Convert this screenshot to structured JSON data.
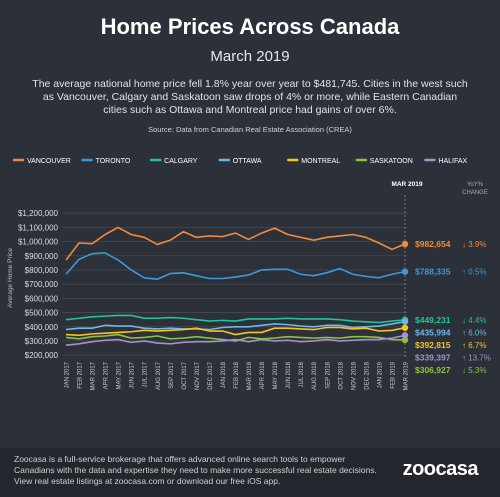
{
  "title": "Home Prices Across Canada",
  "subtitle": "March 2019",
  "description": "The average national home price fell 1.8% year over year to $481,745. Cities in the west such as Vancouver, Calgary and Saskatoon saw drops of 4% or more, while Eastern Canadian cities such as Ottawa and Montreal price had gains of over 6%.",
  "source": "Source: Data from Canadian Real Estate Association (CREA)",
  "footer": {
    "lines": [
      "Zoocasa is a full-service brokerage that offers advanced online search tools to empower",
      "Canadians with the data and expertise they need to make more successful real estate decisions.",
      "View real estate listings at zoocasa.com or download our free iOS app."
    ],
    "logo": "zoocasa"
  },
  "chart_data": {
    "type": "line",
    "y_label": "Average Home Price",
    "end_header": "MAR 2019",
    "change_header": "YoY% CHANGE",
    "grid": true,
    "categories": [
      "JAN 2017",
      "FEB 2017",
      "MAR 2017",
      "APR 2017",
      "MAY 2017",
      "JUN 2017",
      "JUL 2017",
      "AUG 2017",
      "SEP 2017",
      "OCT 2017",
      "NOV 2017",
      "DEC 2017",
      "JAN 2018",
      "FEB 2018",
      "MAR 2018",
      "APR 2018",
      "MAY 2018",
      "JUN 2018",
      "JUL 2018",
      "AUG 2018",
      "SEP 2018",
      "OCT 2018",
      "NOV 2018",
      "DEC 2018",
      "JAN 2019",
      "FEB 2019",
      "MAR 2019"
    ],
    "ylim": [
      180000,
      1300000
    ],
    "yticks": [
      {
        "value": 200000,
        "label": "$200,000"
      },
      {
        "value": 300000,
        "label": "$300,000"
      },
      {
        "value": 400000,
        "label": "$400,000"
      },
      {
        "value": 500000,
        "label": "$500,000"
      },
      {
        "value": 600000,
        "label": "$600,000"
      },
      {
        "value": 700000,
        "label": "$700,000"
      },
      {
        "value": 800000,
        "label": "$800,000"
      },
      {
        "value": 900000,
        "label": "$900,000"
      },
      {
        "value": 1000000,
        "label": "$1,000,000"
      },
      {
        "value": 1100000,
        "label": "$1,100,000"
      },
      {
        "value": 1200000,
        "label": "$1,200,000"
      }
    ],
    "series": [
      {
        "name": "VANCOUVER",
        "color": "#f08a3c",
        "change": "↓ 3.9%",
        "values": [
          870000,
          990000,
          985000,
          1050000,
          1100000,
          1050000,
          1030000,
          980000,
          1010000,
          1070000,
          1030000,
          1040000,
          1035000,
          1060000,
          1015000,
          1060000,
          1095000,
          1050000,
          1030000,
          1010000,
          1030000,
          1040000,
          1050000,
          1030000,
          990000,
          945000,
          982654
        ],
        "value_labels": [
          null,
          null,
          null,
          null,
          null,
          null,
          null,
          null,
          null,
          null,
          null,
          null,
          null,
          null,
          null,
          null,
          null,
          null,
          null,
          null,
          null,
          null,
          null,
          null,
          null,
          null,
          "$982,654"
        ]
      },
      {
        "name": "TORONTO",
        "color": "#3a9ad9",
        "change": "↑ 0.5%",
        "values": [
          770000,
          875000,
          915000,
          920000,
          870000,
          800000,
          745000,
          735000,
          775000,
          780000,
          760000,
          740000,
          740000,
          750000,
          765000,
          800000,
          805000,
          805000,
          770000,
          760000,
          780000,
          810000,
          770000,
          755000,
          745000,
          770000,
          788335
        ],
        "value_labels": [
          null,
          null,
          null,
          null,
          null,
          null,
          null,
          null,
          null,
          null,
          null,
          null,
          null,
          null,
          null,
          null,
          null,
          null,
          null,
          null,
          null,
          null,
          null,
          null,
          null,
          null,
          "$788,335"
        ]
      },
      {
        "name": "CALGARY",
        "color": "#1fc3a0",
        "change": "↓ 4.4%",
        "values": [
          450000,
          460000,
          470000,
          475000,
          480000,
          480000,
          460000,
          460000,
          465000,
          460000,
          450000,
          440000,
          445000,
          440000,
          455000,
          455000,
          455000,
          460000,
          455000,
          455000,
          455000,
          450000,
          440000,
          435000,
          430000,
          440000,
          449231
        ],
        "value_labels": [
          null,
          null,
          null,
          null,
          null,
          null,
          null,
          null,
          null,
          null,
          null,
          null,
          null,
          null,
          null,
          null,
          null,
          null,
          null,
          null,
          null,
          null,
          null,
          null,
          null,
          null,
          "$449,231"
        ]
      },
      {
        "name": "OTTAWA",
        "color": "#6cb7e8",
        "change": "↑ 6.0%",
        "values": [
          380000,
          390000,
          390000,
          410000,
          405000,
          405000,
          390000,
          385000,
          390000,
          385000,
          385000,
          380000,
          395000,
          400000,
          400000,
          410000,
          420000,
          415000,
          405000,
          400000,
          410000,
          410000,
          395000,
          400000,
          405000,
          420000,
          435994
        ],
        "value_labels": [
          null,
          null,
          null,
          null,
          null,
          null,
          null,
          null,
          null,
          null,
          null,
          null,
          null,
          null,
          null,
          null,
          null,
          null,
          null,
          null,
          null,
          null,
          null,
          null,
          null,
          null,
          "$435,994"
        ]
      },
      {
        "name": "MONTREAL",
        "color": "#f5c518",
        "change": "↑ 6.7%",
        "values": [
          345000,
          340000,
          350000,
          355000,
          360000,
          365000,
          375000,
          370000,
          375000,
          380000,
          390000,
          370000,
          370000,
          345000,
          360000,
          360000,
          390000,
          390000,
          385000,
          380000,
          395000,
          395000,
          385000,
          390000,
          370000,
          375000,
          392815
        ],
        "value_labels": [
          null,
          null,
          null,
          null,
          null,
          null,
          null,
          null,
          null,
          null,
          null,
          null,
          null,
          null,
          null,
          null,
          null,
          null,
          null,
          null,
          null,
          null,
          null,
          null,
          null,
          null,
          "$392,815"
        ]
      },
      {
        "name": "SASKATOON",
        "color": "#8ac43f",
        "change": "↓ 5.3%",
        "values": [
          325000,
          315000,
          330000,
          335000,
          345000,
          320000,
          325000,
          335000,
          315000,
          320000,
          330000,
          320000,
          310000,
          300000,
          325000,
          315000,
          320000,
          330000,
          325000,
          320000,
          325000,
          320000,
          330000,
          330000,
          325000,
          310000,
          306927
        ],
        "value_labels": [
          null,
          null,
          null,
          null,
          null,
          null,
          null,
          null,
          null,
          null,
          null,
          null,
          null,
          null,
          null,
          null,
          null,
          null,
          null,
          null,
          null,
          null,
          null,
          null,
          null,
          null,
          "$306,927"
        ]
      },
      {
        "name": "HALIFAX",
        "color": "#a98fd1",
        "change": "↑ 13.7%",
        "values": [
          270000,
          280000,
          295000,
          305000,
          310000,
          290000,
          300000,
          285000,
          280000,
          290000,
          295000,
          295000,
          300000,
          310000,
          295000,
          310000,
          300000,
          305000,
          295000,
          300000,
          310000,
          300000,
          305000,
          310000,
          310000,
          320000,
          339397
        ],
        "value_labels": [
          null,
          null,
          null,
          null,
          null,
          null,
          null,
          null,
          null,
          null,
          null,
          null,
          null,
          null,
          null,
          null,
          null,
          null,
          null,
          null,
          null,
          null,
          null,
          null,
          null,
          null,
          "$339,397"
        ]
      }
    ]
  }
}
